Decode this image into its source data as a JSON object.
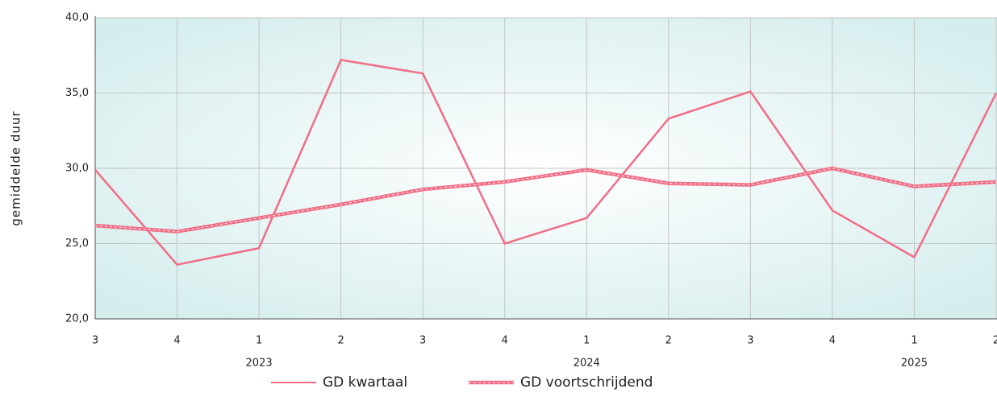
{
  "chart_data": {
    "type": "line",
    "y_label": "gemiddelde duur",
    "categories": [
      "3",
      "4",
      "1",
      "2",
      "3",
      "4",
      "1",
      "2",
      "3",
      "4",
      "1",
      "2"
    ],
    "years": [
      null,
      null,
      "2023",
      null,
      null,
      null,
      "2024",
      null,
      null,
      null,
      "2025",
      null
    ],
    "series": [
      {
        "name": "GD kwartaal",
        "color": "#f06e86",
        "style": "solid",
        "values": [
          29.9,
          23.6,
          24.7,
          37.2,
          36.3,
          25.0,
          26.7,
          33.3,
          35.1,
          27.2,
          24.1,
          35.0
        ]
      },
      {
        "name": "GD voortschrijdend",
        "color": "#f06e86",
        "style": "dashed",
        "values": [
          26.2,
          25.8,
          26.7,
          27.6,
          28.6,
          29.1,
          29.9,
          29.0,
          28.9,
          30.0,
          28.8,
          29.1
        ]
      }
    ],
    "ylim": [
      20,
      40
    ],
    "yticks": [
      {
        "value": 20,
        "label": "20,0"
      },
      {
        "value": 25,
        "label": "25,0"
      },
      {
        "value": 30,
        "label": "30,0"
      },
      {
        "value": 35,
        "label": "35,0"
      },
      {
        "value": 40,
        "label": "40,0"
      }
    ],
    "grid": true,
    "legend": "bottom"
  }
}
